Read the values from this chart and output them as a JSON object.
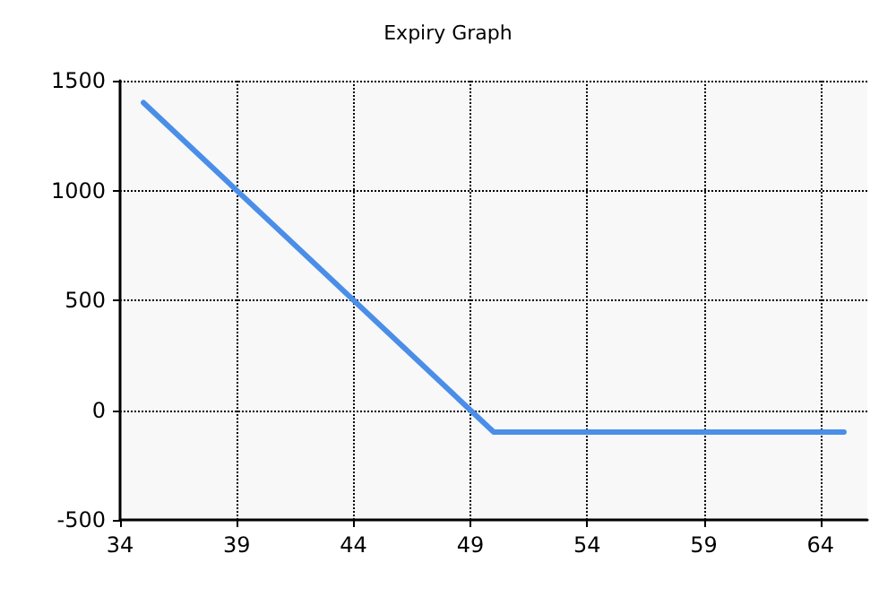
{
  "chart_data": {
    "type": "line",
    "title": "Expiry Graph",
    "x": [
      35,
      50,
      65
    ],
    "series": [
      {
        "color": "#4a8ee8",
        "values": [
          1400,
          -100,
          -100
        ]
      }
    ],
    "xlim": [
      34,
      66
    ],
    "xticks": [
      34,
      39,
      44,
      49,
      54,
      59,
      64
    ],
    "ylim": [
      -500,
      1500
    ],
    "yticks": [
      -500,
      0,
      500,
      1000,
      1500
    ],
    "grid": true,
    "marker": "none",
    "line_style": "solid"
  }
}
